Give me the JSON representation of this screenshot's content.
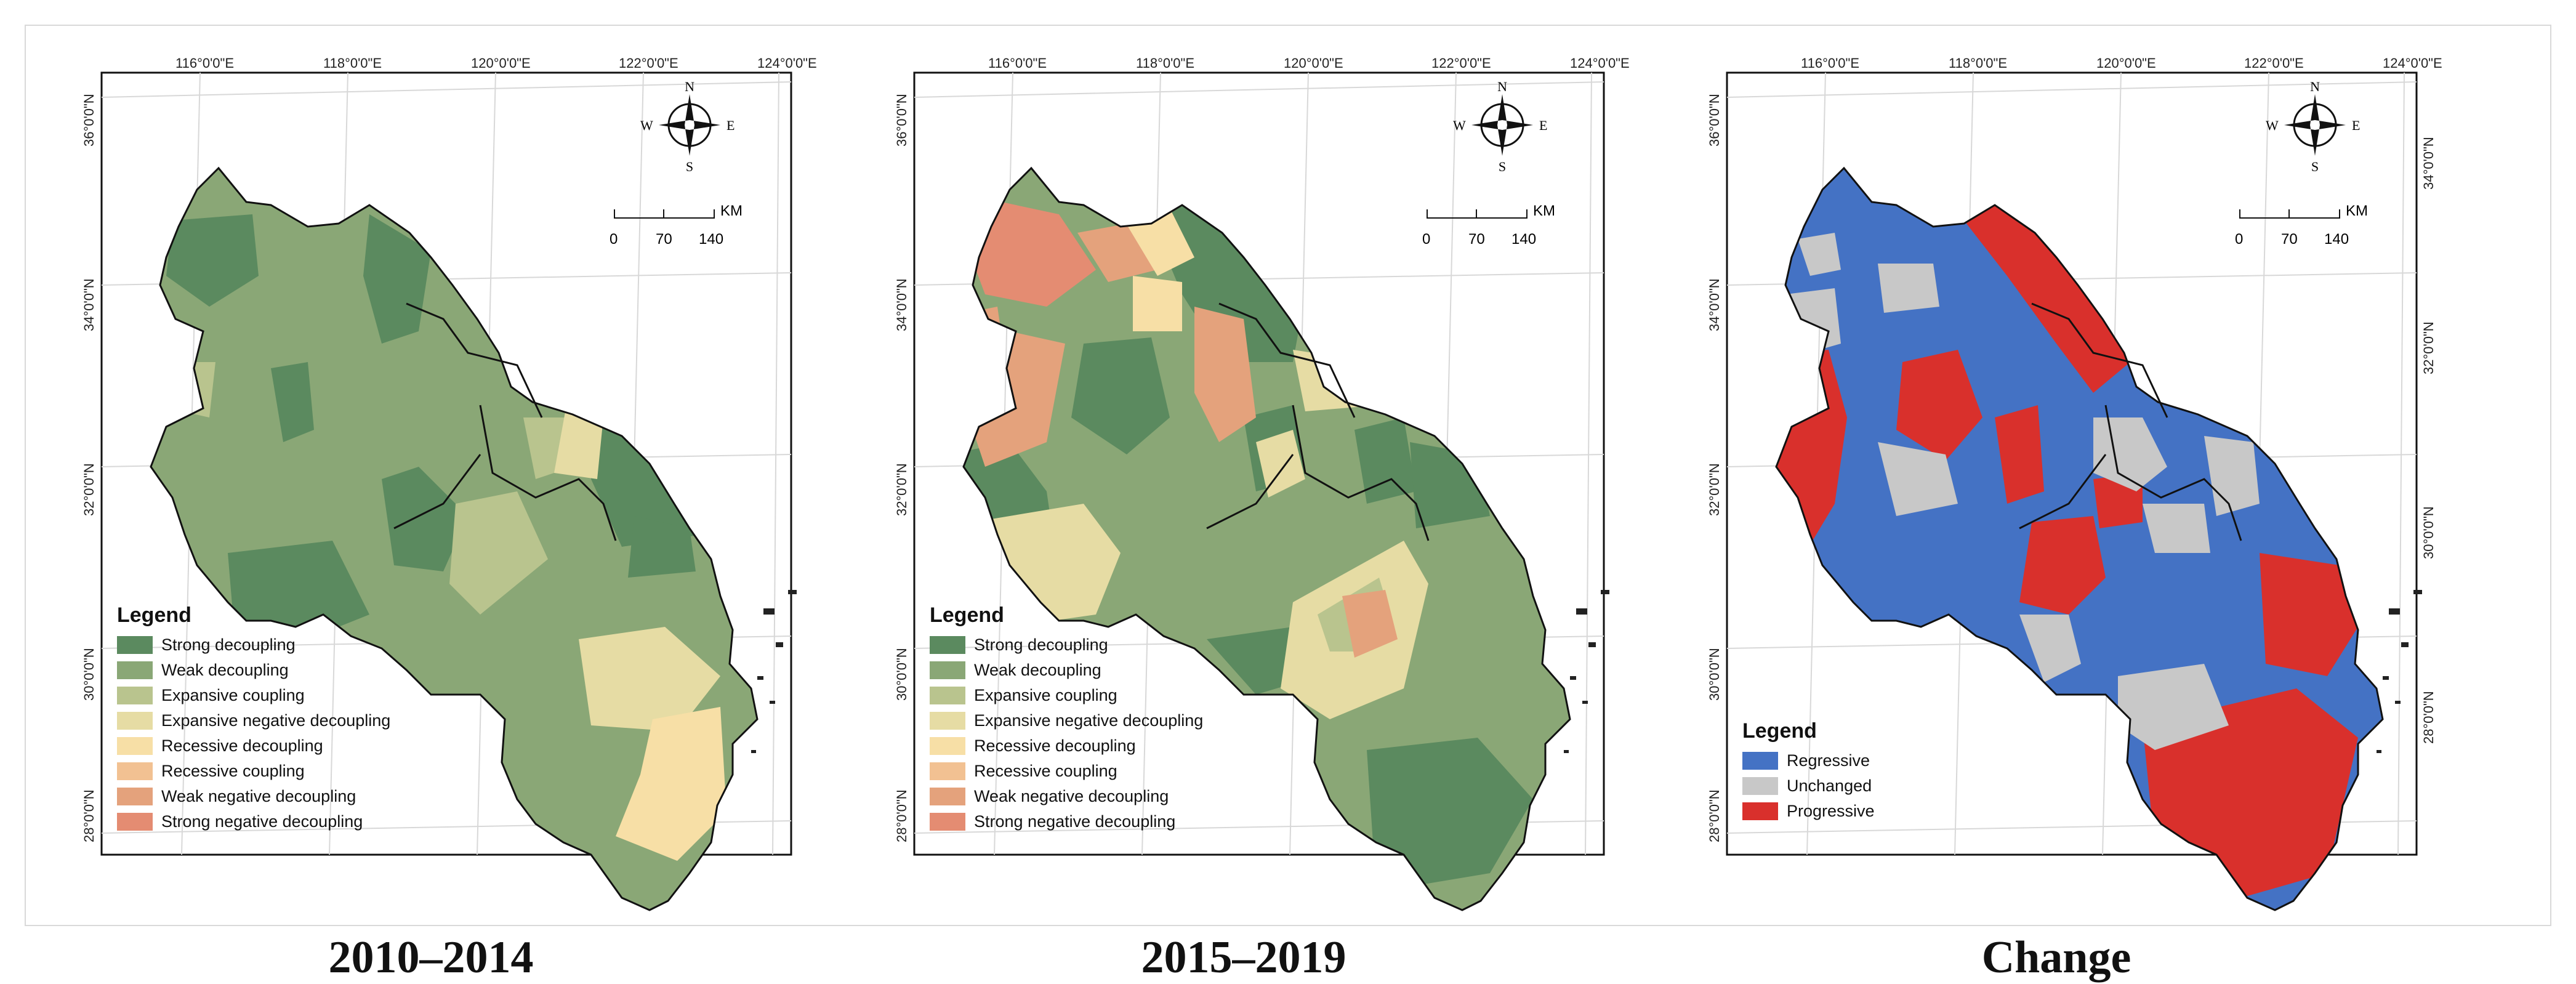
{
  "panels": [
    {
      "id": "p2010",
      "caption": "2010–2014"
    },
    {
      "id": "p2015",
      "caption": "2015–2019"
    },
    {
      "id": "pchange",
      "caption": "Change"
    }
  ],
  "axes": {
    "lon_labels": [
      "116°0'0\"E",
      "118°0'0\"E",
      "120°0'0\"E",
      "122°0'0\"E",
      "124°0'0\"E"
    ],
    "lat_labels_left": [
      "36°0'0\"N",
      "34°0'0\"N",
      "32°0'0\"N",
      "30°0'0\"N",
      "28°0'0\"N"
    ],
    "lat_labels_right": [
      "34°0'0\"N",
      "32°0'0\"N",
      "30°0'0\"N",
      "28°0'0\"N"
    ]
  },
  "compass": {
    "n": "N",
    "s": "S",
    "e": "E",
    "w": "W"
  },
  "scale_bar": {
    "unit": "KM",
    "ticks": [
      "0",
      "70",
      "140"
    ]
  },
  "legend_decoupling": {
    "title": "Legend",
    "items": [
      {
        "label": "Strong decoupling",
        "color": "#5b8a5f"
      },
      {
        "label": "Weak decoupling",
        "color": "#8aa776"
      },
      {
        "label": "Expansive coupling",
        "color": "#b9c48e"
      },
      {
        "label": "Expansive negative decoupling",
        "color": "#e6dca4"
      },
      {
        "label": "Recessive decoupling",
        "color": "#f7dfa6"
      },
      {
        "label": "Recessive coupling",
        "color": "#f2c192"
      },
      {
        "label": "Weak negative decoupling",
        "color": "#e4a27c"
      },
      {
        "label": "Strong negative decoupling",
        "color": "#e48c72"
      }
    ]
  },
  "legend_change": {
    "title": "Legend",
    "items": [
      {
        "label": "Regressive",
        "color": "#4472c4"
      },
      {
        "label": "Unchanged",
        "color": "#c8c8c8"
      },
      {
        "label": "Progressive",
        "color": "#d9302c"
      }
    ]
  }
}
